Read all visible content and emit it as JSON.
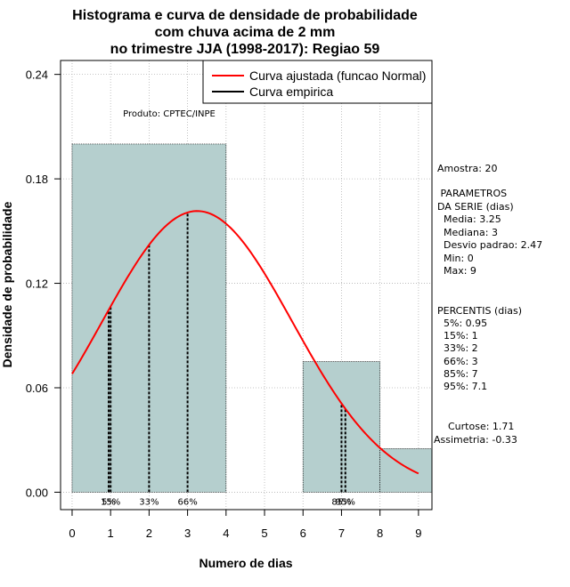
{
  "titles": [
    "Histograma e curva de densidade de probabilidade",
    "com chuva acima de 2 mm",
    "no trimestre JJA (1998-2017): Regiao 59"
  ],
  "legend": {
    "fitted": "Curva ajustada (funcao Normal)",
    "empirical": "Curva empirica"
  },
  "product": "Produto: CPTEC/INPE",
  "colors": {
    "bars": "#b5cfce",
    "fitted": "#ff0000",
    "empirical": "#000000",
    "grid": "#b3b3b3"
  },
  "side_panel": [
    "Amostra: 20",
    " PARAMETROS",
    "DA SERIE (dias)",
    "  Media: 3.25",
    "  Mediana: 3",
    "  Desvio padrao: 2.47",
    "  Min: 0",
    "  Max: 9",
    "PERCENTIS (dias)",
    "  5%: 0.95",
    "  15%: 1",
    "  33%: 2",
    "  66%: 3",
    "  85%: 7",
    "  95%: 7.1",
    "Curtose: 1.71",
    "Assimetria: -0.33"
  ],
  "chart_data": {
    "type": "bar",
    "title": "Histograma e curva de densidade de probabilidade com chuva acima de 2 mm no trimestre JJA (1998-2017): Regiao 59",
    "xlabel": "Numero de dias",
    "ylabel": "Densidade de probabilidade",
    "xlim": [
      -0.3,
      9.35
    ],
    "ylim": [
      -0.01,
      0.248
    ],
    "xticks": [
      0,
      1,
      2,
      3,
      4,
      5,
      6,
      7,
      8,
      9
    ],
    "yticks": [
      0.0,
      0.06,
      0.12,
      0.18,
      0.24
    ],
    "ytick_labels": [
      "0.00",
      "0.06",
      "0.12",
      "0.18",
      "0.24"
    ],
    "grid": true,
    "legend_position": "top-right",
    "histogram": [
      {
        "from": 0,
        "to": 4,
        "density": 0.2
      },
      {
        "from": 4,
        "to": 6,
        "density": 0.0
      },
      {
        "from": 6,
        "to": 8,
        "density": 0.075
      },
      {
        "from": 8,
        "to": 9.35,
        "density": 0.025
      }
    ],
    "fitted_curve": {
      "distribution": "normal",
      "mean": 3.25,
      "sd": 2.47,
      "x_from": 0,
      "x_to": 9
    },
    "percentiles": [
      {
        "label": "5%",
        "value": 0.95
      },
      {
        "label": "15%",
        "value": 1
      },
      {
        "label": "33%",
        "value": 2
      },
      {
        "label": "66%",
        "value": 3
      },
      {
        "label": "85%",
        "value": 7
      },
      {
        "label": "95%",
        "value": 7.1
      }
    ]
  }
}
